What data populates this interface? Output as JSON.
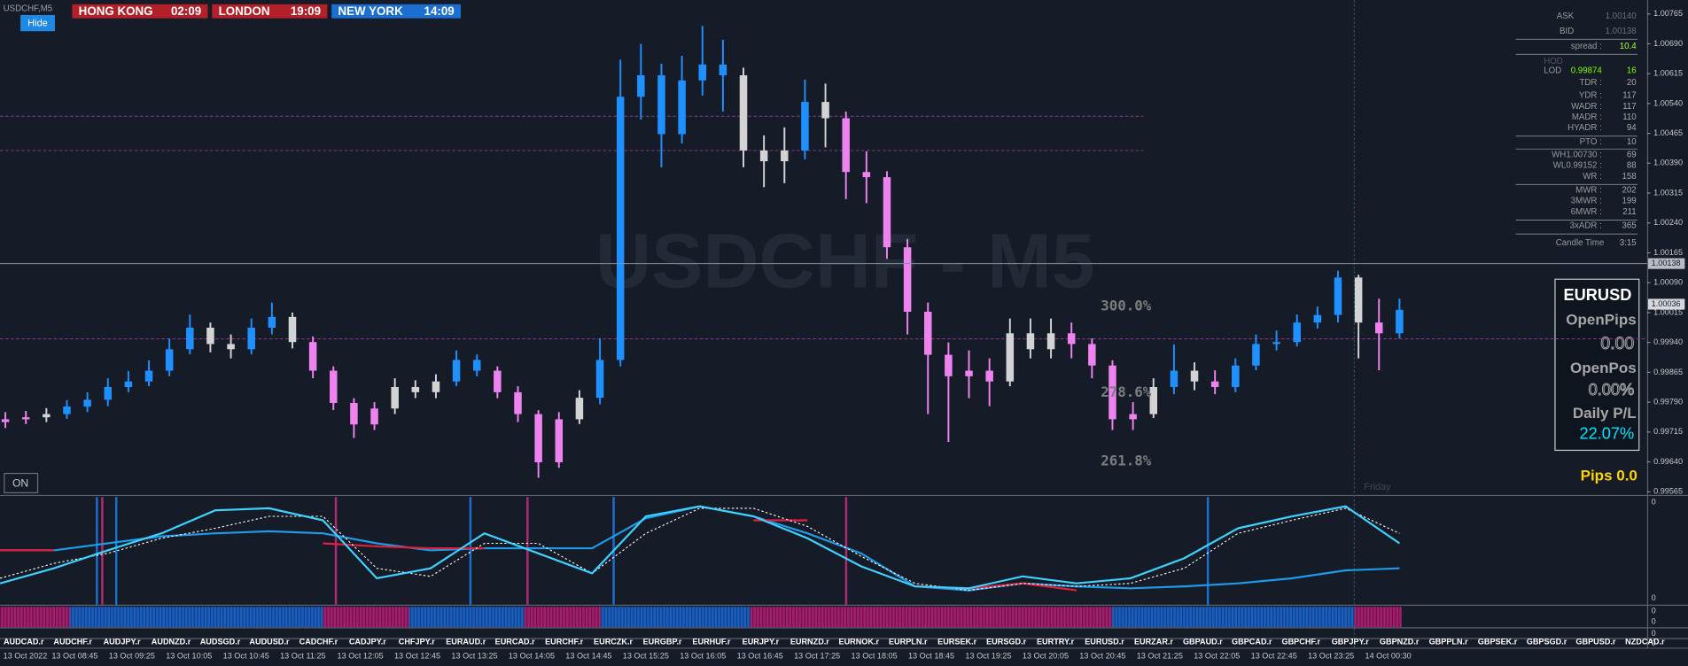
{
  "chart_data": [
    {
      "type": "candlestick",
      "title": "USDCHF,M5",
      "watermark": "USDCHF - M5",
      "open": [
        0.9974,
        0.99747,
        0.99752,
        0.9976,
        0.99779,
        0.99796,
        0.99828,
        0.99842,
        0.99869,
        0.99923,
        0.99977,
        0.99936,
        0.99923,
        0.99977,
        1.00004,
        0.99941,
        0.99869,
        0.99788,
        0.99734,
        0.99774,
        0.99828,
        0.99815,
        0.99842,
        0.99896,
        0.99869,
        0.99815,
        0.9976,
        0.99639,
        0.99747,
        0.99801,
        0.99896,
        1.00557,
        1.00611,
        1.00463,
        1.00598,
        1.00638,
        1.00611,
        1.00422,
        1.00395,
        1.00422,
        1.00544,
        1.00503,
        1.00368,
        1.00355,
        1.00179,
        1.00017,
        0.99909,
        0.99855,
        0.99869,
        0.99842,
        0.99963,
        0.99923,
        0.99963,
        0.99936,
        0.99882,
        0.99747,
        0.9976,
        0.99828,
        0.99869,
        0.99842,
        0.99828,
        0.99882,
        0.99936,
        0.99941,
        0.9999,
        1.00009,
        1.00103,
        0.9999,
        0.99963
      ],
      "high": [
        0.99765,
        0.99768,
        0.99775,
        0.99795,
        0.99815,
        0.9985,
        0.99868,
        0.99895,
        0.9995,
        1.0001,
        0.9999,
        0.9996,
        1.0,
        1.0004,
        1.00015,
        0.99955,
        0.9988,
        0.998,
        0.9979,
        0.9985,
        0.99845,
        0.9986,
        0.9992,
        0.9991,
        0.9988,
        0.9983,
        0.9977,
        0.99765,
        0.9982,
        0.9995,
        1.0065,
        1.0069,
        1.0064,
        1.0066,
        1.00735,
        1.007,
        1.0063,
        1.0046,
        1.0048,
        1.006,
        1.0059,
        1.0052,
        1.0042,
        1.0037,
        1.002,
        1.0004,
        0.9994,
        0.9992,
        0.999,
        1.0,
        1.0,
        1.0,
        0.9999,
        0.9995,
        0.99895,
        0.9979,
        0.9985,
        0.99935,
        0.9989,
        0.9987,
        0.999,
        0.9996,
        0.9997,
        1.0001,
        1.0003,
        1.0012,
        1.0011,
        1.0005,
        1.0005
      ],
      "low": [
        0.99725,
        0.99735,
        0.9974,
        0.99748,
        0.99765,
        0.9978,
        0.99815,
        0.9983,
        0.99855,
        0.9991,
        0.99915,
        0.999,
        0.9991,
        0.9996,
        0.99925,
        0.9985,
        0.9977,
        0.997,
        0.9972,
        0.9976,
        0.998,
        0.998,
        0.9983,
        0.99855,
        0.998,
        0.9974,
        0.996,
        0.99625,
        0.99735,
        0.99785,
        0.9988,
        1.005,
        1.0038,
        1.0044,
        1.0056,
        1.0052,
        1.0038,
        1.0033,
        1.0034,
        1.004,
        1.0043,
        1.003,
        1.0029,
        1.0015,
        0.9996,
        0.9976,
        0.9969,
        0.998,
        0.9978,
        0.9983,
        0.999,
        0.999,
        0.999,
        0.9985,
        0.9972,
        0.9972,
        0.9975,
        0.9981,
        0.9982,
        0.9981,
        0.99815,
        0.9987,
        0.9992,
        0.9993,
        0.99975,
        0.9999,
        0.999,
        0.9987,
        0.9995
      ],
      "close": [
        0.99747,
        0.99752,
        0.9976,
        0.99779,
        0.99796,
        0.99828,
        0.99842,
        0.99869,
        0.99923,
        0.99977,
        0.99936,
        0.99923,
        0.99977,
        1.00004,
        0.99941,
        0.99869,
        0.99788,
        0.99734,
        0.99774,
        0.99828,
        0.99815,
        0.99842,
        0.99896,
        0.99869,
        0.99815,
        0.9976,
        0.99639,
        0.99747,
        0.99801,
        0.99896,
        1.00557,
        1.00611,
        1.00463,
        1.00598,
        1.00638,
        1.00611,
        1.00422,
        1.00395,
        1.00422,
        1.00544,
        1.00503,
        1.00368,
        1.00355,
        1.00179,
        1.00017,
        0.99909,
        0.99855,
        0.99869,
        0.99842,
        0.99963,
        0.99923,
        0.99963,
        0.99936,
        0.99882,
        0.99747,
        0.9976,
        0.99828,
        0.99869,
        0.99842,
        0.99828,
        0.99882,
        0.99936,
        0.99941,
        0.9999,
        1.00009,
        1.00103,
        0.9999,
        0.99963,
        1.00022
      ],
      "colors": [
        "#ee82ee",
        "#ee82ee",
        "#d3d3d3",
        "#1e90ff",
        "#1e90ff",
        "#1e90ff",
        "#1e90ff",
        "#1e90ff",
        "#1e90ff",
        "#1e90ff",
        "#d3d3d3",
        "#d3d3d3",
        "#1e90ff",
        "#1e90ff",
        "#d3d3d3",
        "#ee82ee",
        "#ee82ee",
        "#ee82ee",
        "#ee82ee",
        "#d3d3d3",
        "#d3d3d3",
        "#d3d3d3",
        "#1e90ff",
        "#1e90ff",
        "#ee82ee",
        "#ee82ee",
        "#ee82ee",
        "#ee82ee",
        "#d3d3d3",
        "#1e90ff",
        "#1e90ff",
        "#1e90ff",
        "#1e90ff",
        "#1e90ff",
        "#1e90ff",
        "#1e90ff",
        "#d3d3d3",
        "#d3d3d3",
        "#d3d3d3",
        "#1e90ff",
        "#d3d3d3",
        "#ee82ee",
        "#ee82ee",
        "#ee82ee",
        "#ee82ee",
        "#ee82ee",
        "#ee82ee",
        "#ee82ee",
        "#ee82ee",
        "#d3d3d3",
        "#d3d3d3",
        "#d3d3d3",
        "#ee82ee",
        "#ee82ee",
        "#ee82ee",
        "#ee82ee",
        "#d3d3d3",
        "#1e90ff",
        "#d3d3d3",
        "#ee82ee",
        "#1e90ff",
        "#1e90ff",
        "#1e90ff",
        "#1e90ff",
        "#1e90ff",
        "#1e90ff",
        "#d3d3d3",
        "#ee82ee",
        "#1e90ff"
      ],
      "ylim": [
        0.99557,
        1.008
      ],
      "yticks": [
        1.00765,
        {
          "value": 1.0069,
          "label": "1.00690"
        },
        1.00615,
        {
          "value": 1.0054,
          "label": "1.00540"
        },
        1.00465,
        {
          "value": 1.0039,
          "label": "1.00390"
        },
        1.00315,
        {
          "value": 1.0024,
          "label": "1.00240"
        },
        1.00165,
        {
          "value": 1.0009,
          "label": "1.00090"
        },
        1.00015,
        {
          "value": 0.9994,
          "label": "0.99940"
        },
        0.99865,
        {
          "value": 0.9979,
          "label": "0.99790"
        },
        0.99715,
        {
          "value": 0.9964,
          "label": "0.99640"
        },
        0.99565
      ],
      "price_tags": [
        1.00138,
        1.00036
      ],
      "levels": [
        1.00508,
        1.00422,
        0.99949
      ],
      "level_color": "#8a3a8a",
      "annotations": [
        "300.0%",
        "278.6%",
        "261.8%"
      ],
      "time_labels": [
        "13 Oct 2022",
        "13 Oct 08:45",
        "13 Oct 09:25",
        "13 Oct 10:05",
        "13 Oct 10:45",
        "13 Oct 11:25",
        "13 Oct 12:05",
        "13 Oct 12:45",
        "13 Oct 13:25",
        "13 Oct 14:05",
        "13 Oct 14:45",
        "13 Oct 15:25",
        "13 Oct 16:05",
        "13 Oct 16:45",
        "13 Oct 17:25",
        "13 Oct 18:05",
        "13 Oct 18:45",
        "13 Oct 19:25",
        "13 Oct 20:05",
        "13 Oct 20:45",
        "13 Oct 21:25",
        "13 Oct 22:05",
        "13 Oct 22:45",
        "13 Oct 23:25",
        "14 Oct 00:30"
      ],
      "day_label": "Friday"
    },
    {
      "type": "line",
      "ylim": [
        0,
        100
      ],
      "axis_labels": [
        "0",
        "0"
      ],
      "series": [
        {
          "color": "#1e9be8",
          "dash": false,
          "values": [
            50,
            50,
            57,
            64,
            67,
            69,
            67,
            57,
            50,
            52,
            52,
            52,
            82,
            94,
            84,
            67,
            47,
            14,
            10,
            17,
            14,
            12,
            14,
            17,
            22,
            30,
            32
          ]
        },
        {
          "color": "#e0203c",
          "dash": false,
          "values": [
            50,
            50,
            null,
            null,
            null,
            null,
            57,
            54,
            52,
            52,
            null,
            null,
            null,
            null,
            80,
            80,
            null,
            14,
            12,
            17,
            10,
            null,
            null,
            null,
            null,
            null,
            null
          ]
        },
        {
          "color": "#ffffff",
          "dash": true,
          "values": [
            22,
            37,
            47,
            62,
            72,
            84,
            84,
            32,
            24,
            57,
            57,
            27,
            67,
            92,
            92,
            74,
            44,
            17,
            10,
            17,
            14,
            17,
            32,
            67,
            80,
            92,
            67
          ]
        },
        {
          "color": "#3fd2ff",
          "dash": false,
          "values": [
            17,
            32,
            50,
            67,
            90,
            92,
            80,
            22,
            32,
            67,
            47,
            27,
            84,
            94,
            84,
            62,
            34,
            14,
            12,
            24,
            17,
            22,
            42,
            72,
            84,
            94,
            57
          ]
        }
      ]
    }
  ],
  "ui": {
    "hide_button": "Hide",
    "on_button": "ON",
    "clocks": [
      {
        "city": "HONG KONG",
        "time": "02:09",
        "color": "#b3202a"
      },
      {
        "city": "LONDON",
        "time": "19:09",
        "color": "#b3202a"
      },
      {
        "city": "NEW YORK",
        "time": "14:09",
        "color": "#1a6fd0"
      }
    ],
    "info_rows": [
      {
        "label": "ASK",
        "value": "1.00140"
      },
      {
        "label": "BID",
        "value": "1.00138"
      },
      {
        "label": "spread :",
        "value": "10.4",
        "color": "#adff2f"
      },
      {
        "label": "HOD"
      },
      {
        "label": "LOD",
        "level": "0.99874",
        "value": "16",
        "color": "#7cfc00"
      },
      {
        "label": "TDR :",
        "value": "20"
      },
      {
        "label": "YDR :",
        "value": "117"
      },
      {
        "label": "WADR :",
        "value": "117"
      },
      {
        "label": "MADR :",
        "value": "110"
      },
      {
        "label": "HYADR :",
        "value": "94"
      },
      {
        "label": "PTO :",
        "value": "10"
      },
      {
        "label": "WH1.00730 :",
        "value": "69"
      },
      {
        "label": "WL0.99152 :",
        "value": "88"
      },
      {
        "label": "WR :",
        "value": "158"
      },
      {
        "label": "MWR :",
        "value": "202"
      },
      {
        "label": "3MWR :",
        "value": "199"
      },
      {
        "label": "6MWR :",
        "value": "211"
      },
      {
        "label": "3xADR :",
        "value": "365"
      },
      {
        "label": "Candle Time",
        "value": "3:15"
      }
    ],
    "account_box": {
      "symbol": "EURUSD",
      "pips_label": "OpenPips",
      "pips": "0.00",
      "pos_label": "OpenPos",
      "pos": "0.00%",
      "pl_label": "Daily P/L",
      "pl": "22.07%"
    },
    "pips_total": "Pips 0.0",
    "sub_axis_labels": [
      "0",
      "0",
      "0",
      "0"
    ],
    "symbols": [
      "AUDCAD.r",
      "AUDCHF.r",
      "AUDJPY.r",
      "AUDNZD.r",
      "AUDSGD.r",
      "AUDUSD.r",
      "CADCHF.r",
      "CADJPY.r",
      "CHFJPY.r",
      "EURAUD.r",
      "EURCAD.r",
      "EURCHF.r",
      "EURCZK.r",
      "EURGBP.r",
      "EURHUF.r",
      "EURJPY.r",
      "EURNZD.r",
      "EURNOK.r",
      "EURPLN.r",
      "EURSEK.r",
      "EURSGD.r",
      "EURTRY.r",
      "EURUSD.r",
      "EURZAR.r",
      "GBPAUD.r",
      "GBPCAD.r",
      "GBPCHF.r",
      "GBPJPY.r",
      "GBPNZD.r",
      "GBPPLN.r",
      "GBPSEK.r",
      "GBPSGD.r",
      "GBPUSD.r",
      "NZDCAD.r"
    ]
  }
}
